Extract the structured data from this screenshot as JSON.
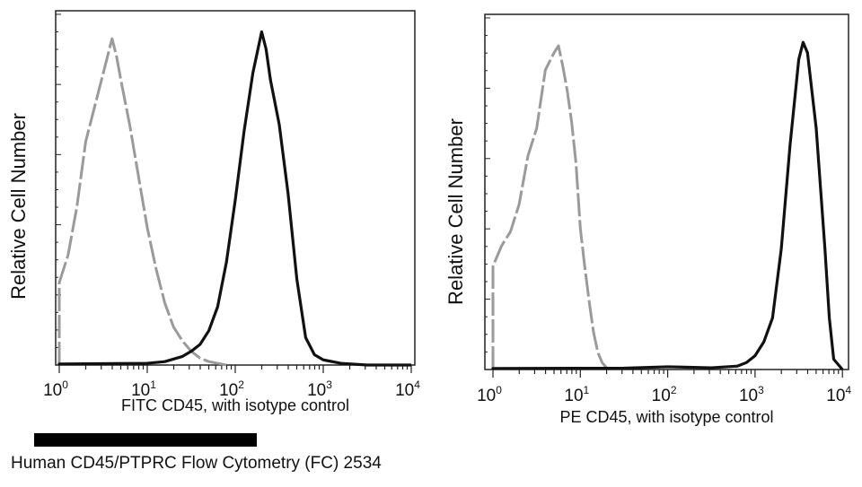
{
  "chart_data": [
    {
      "type": "line",
      "title": "",
      "xlabel": "FITC  CD45,  with isotype control",
      "ylabel": "Relative Cell Number",
      "xscale": "log10",
      "xlim": [
        1,
        10000
      ],
      "ylim": [
        0,
        100
      ],
      "x_tick_labels": [
        {
          "base": "10",
          "exp": "0"
        },
        {
          "base": "10",
          "exp": "1"
        },
        {
          "base": "10",
          "exp": "2"
        },
        {
          "base": "10",
          "exp": "3"
        },
        {
          "base": "10",
          "exp": "4"
        }
      ],
      "grid": false,
      "series": [
        {
          "name": "isotype control",
          "color": "#9a9a9a",
          "style": "dashed",
          "log_x": [
            0,
            0.1,
            0.2,
            0.3,
            0.4,
            0.5,
            0.55,
            0.6,
            0.65,
            0.7,
            0.8,
            0.9,
            1.0,
            1.1,
            1.2,
            1.3,
            1.4,
            1.5,
            1.6,
            1.7,
            1.8,
            1.9
          ],
          "y": [
            24,
            32,
            46,
            65,
            75,
            85,
            90,
            95,
            90,
            83,
            70,
            55,
            40,
            28,
            18,
            11,
            7,
            4,
            2,
            1,
            0.5,
            0
          ]
        },
        {
          "name": "CD45",
          "color": "#111111",
          "style": "solid",
          "log_x": [
            0,
            1.0,
            1.2,
            1.4,
            1.5,
            1.6,
            1.7,
            1.8,
            1.9,
            2.0,
            2.1,
            2.2,
            2.3,
            2.35,
            2.4,
            2.5,
            2.6,
            2.7,
            2.8,
            2.9,
            3.0,
            3.2,
            3.5,
            4.0
          ],
          "y": [
            0.3,
            0.5,
            1,
            2.5,
            4,
            6,
            10,
            17,
            30,
            48,
            68,
            85,
            97,
            92,
            83,
            70,
            50,
            25,
            8,
            3,
            1.5,
            0.5,
            0,
            0
          ]
        }
      ]
    },
    {
      "type": "line",
      "title": "",
      "xlabel": "PE CD45, with isotype control",
      "ylabel": "Relative Cell Number",
      "xscale": "log10",
      "xlim": [
        1,
        10000
      ],
      "ylim": [
        0,
        100
      ],
      "x_tick_labels": [
        {
          "base": "10",
          "exp": "0"
        },
        {
          "base": "10",
          "exp": "1"
        },
        {
          "base": "10",
          "exp": "2"
        },
        {
          "base": "10",
          "exp": "3"
        },
        {
          "base": "10",
          "exp": "4"
        }
      ],
      "grid": false,
      "series": [
        {
          "name": "isotype control",
          "color": "#9a9a9a",
          "style": "dashed",
          "log_x": [
            0,
            0.1,
            0.2,
            0.3,
            0.4,
            0.5,
            0.6,
            0.7,
            0.75,
            0.8,
            0.85,
            0.9,
            0.95,
            1.0,
            1.05,
            1.1,
            1.15,
            1.2,
            1.25,
            1.3
          ],
          "y": [
            30,
            36,
            40,
            48,
            62,
            70,
            87,
            92,
            94,
            88,
            81,
            72,
            60,
            41,
            30,
            20,
            11,
            5,
            2,
            0.5
          ]
        },
        {
          "name": "CD45",
          "color": "#111111",
          "style": "solid",
          "log_x": [
            0,
            1.5,
            2.0,
            2.5,
            2.8,
            2.9,
            3.0,
            3.1,
            3.2,
            3.3,
            3.4,
            3.5,
            3.55,
            3.6,
            3.7,
            3.8,
            3.85,
            3.9,
            4.0
          ],
          "y": [
            0.3,
            0.4,
            0.8,
            0.5,
            1,
            2,
            4,
            8,
            15,
            35,
            65,
            90,
            95,
            92,
            70,
            35,
            15,
            3,
            0
          ]
        }
      ]
    }
  ],
  "caption": "Human CD45/PTPRC Flow Cytometry (FC) 2534"
}
